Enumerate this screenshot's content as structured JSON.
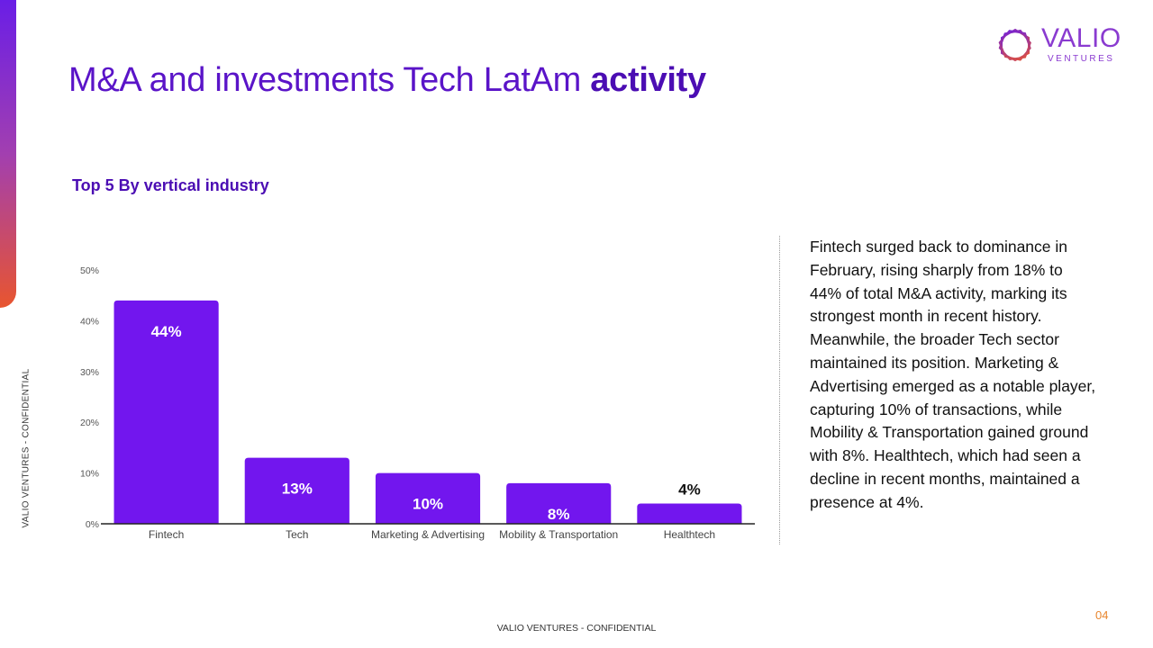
{
  "brand": {
    "name": "VALIO",
    "sub": "VENTURES",
    "gradient": [
      "#6a1ee6",
      "#a23fb0",
      "#e8552f"
    ]
  },
  "side_label": "VALIO VENTURES - CONFIDENTIAL",
  "title": {
    "regular": "M&A and investments Tech LatAm ",
    "bold": "activity"
  },
  "subtitle": {
    "regular": "Top 5 By ",
    "bold": "vertical industry"
  },
  "chart_data": {
    "type": "bar",
    "categories": [
      "Fintech",
      "Tech",
      "Marketing & Advertising",
      "Mobility & Transportation",
      "Healthtech"
    ],
    "values": [
      44,
      13,
      10,
      8,
      4
    ],
    "labels": [
      "44%",
      "13%",
      "10%",
      "8%",
      "4%"
    ],
    "yticks": [
      "0%",
      "10%",
      "20%",
      "30%",
      "40%",
      "50%"
    ],
    "ylim": [
      0,
      50
    ],
    "bar_color": "#7216ee",
    "grid": false,
    "title": "",
    "xlabel": "",
    "ylabel": ""
  },
  "description": "Fintech surged back to dominance in February, rising sharply from 18% to 44% of total M&A activity, marking its strongest month in recent history. Meanwhile, the broader Tech sector maintained its position. Marketing & Advertising emerged as a notable player, capturing 10% of transactions, while Mobility & Transportation gained ground with 8%. Healthtech, which had seen a decline in recent months, maintained a presence at 4%.",
  "footer": "VALIO VENTURES - CONFIDENTIAL",
  "page_number": "04"
}
